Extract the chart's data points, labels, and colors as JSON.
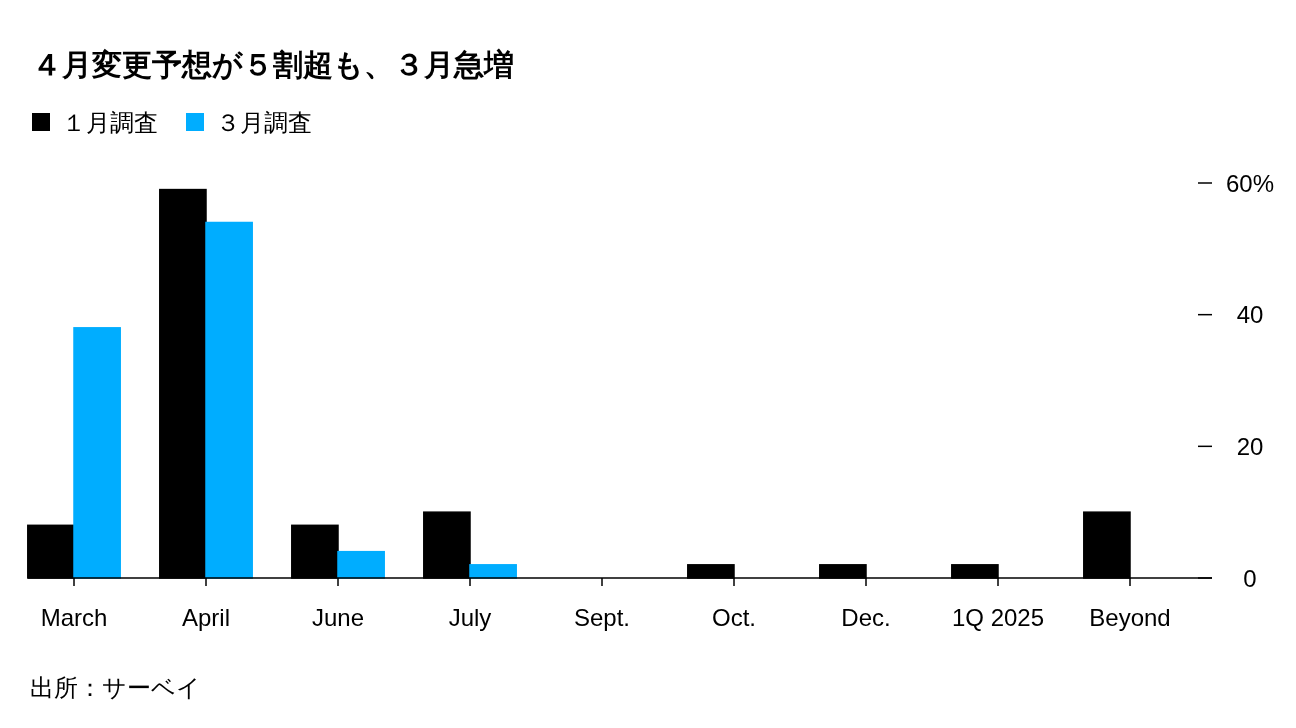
{
  "chart_data": {
    "type": "bar",
    "title": "４月変更予想が５割超も、３月急増",
    "categories": [
      "March",
      "April",
      "June",
      "July",
      "Sept.",
      "Oct.",
      "Dec.",
      "1Q 2025",
      "Beyond"
    ],
    "series": [
      {
        "name": "１月調査",
        "color": "#000000",
        "values": [
          8,
          59,
          8,
          10,
          0,
          2,
          2,
          2,
          10
        ]
      },
      {
        "name": "３月調査",
        "color": "#00adff",
        "values": [
          38,
          54,
          4,
          2,
          0,
          0,
          0,
          0,
          0
        ]
      }
    ],
    "ylim": [
      0,
      60
    ],
    "yticks": [
      0,
      20,
      40,
      {
        "value": 60,
        "label": "60%"
      }
    ],
    "grid": false,
    "legend": "top left",
    "annotations": [
      "出所：サーベイ"
    ]
  }
}
